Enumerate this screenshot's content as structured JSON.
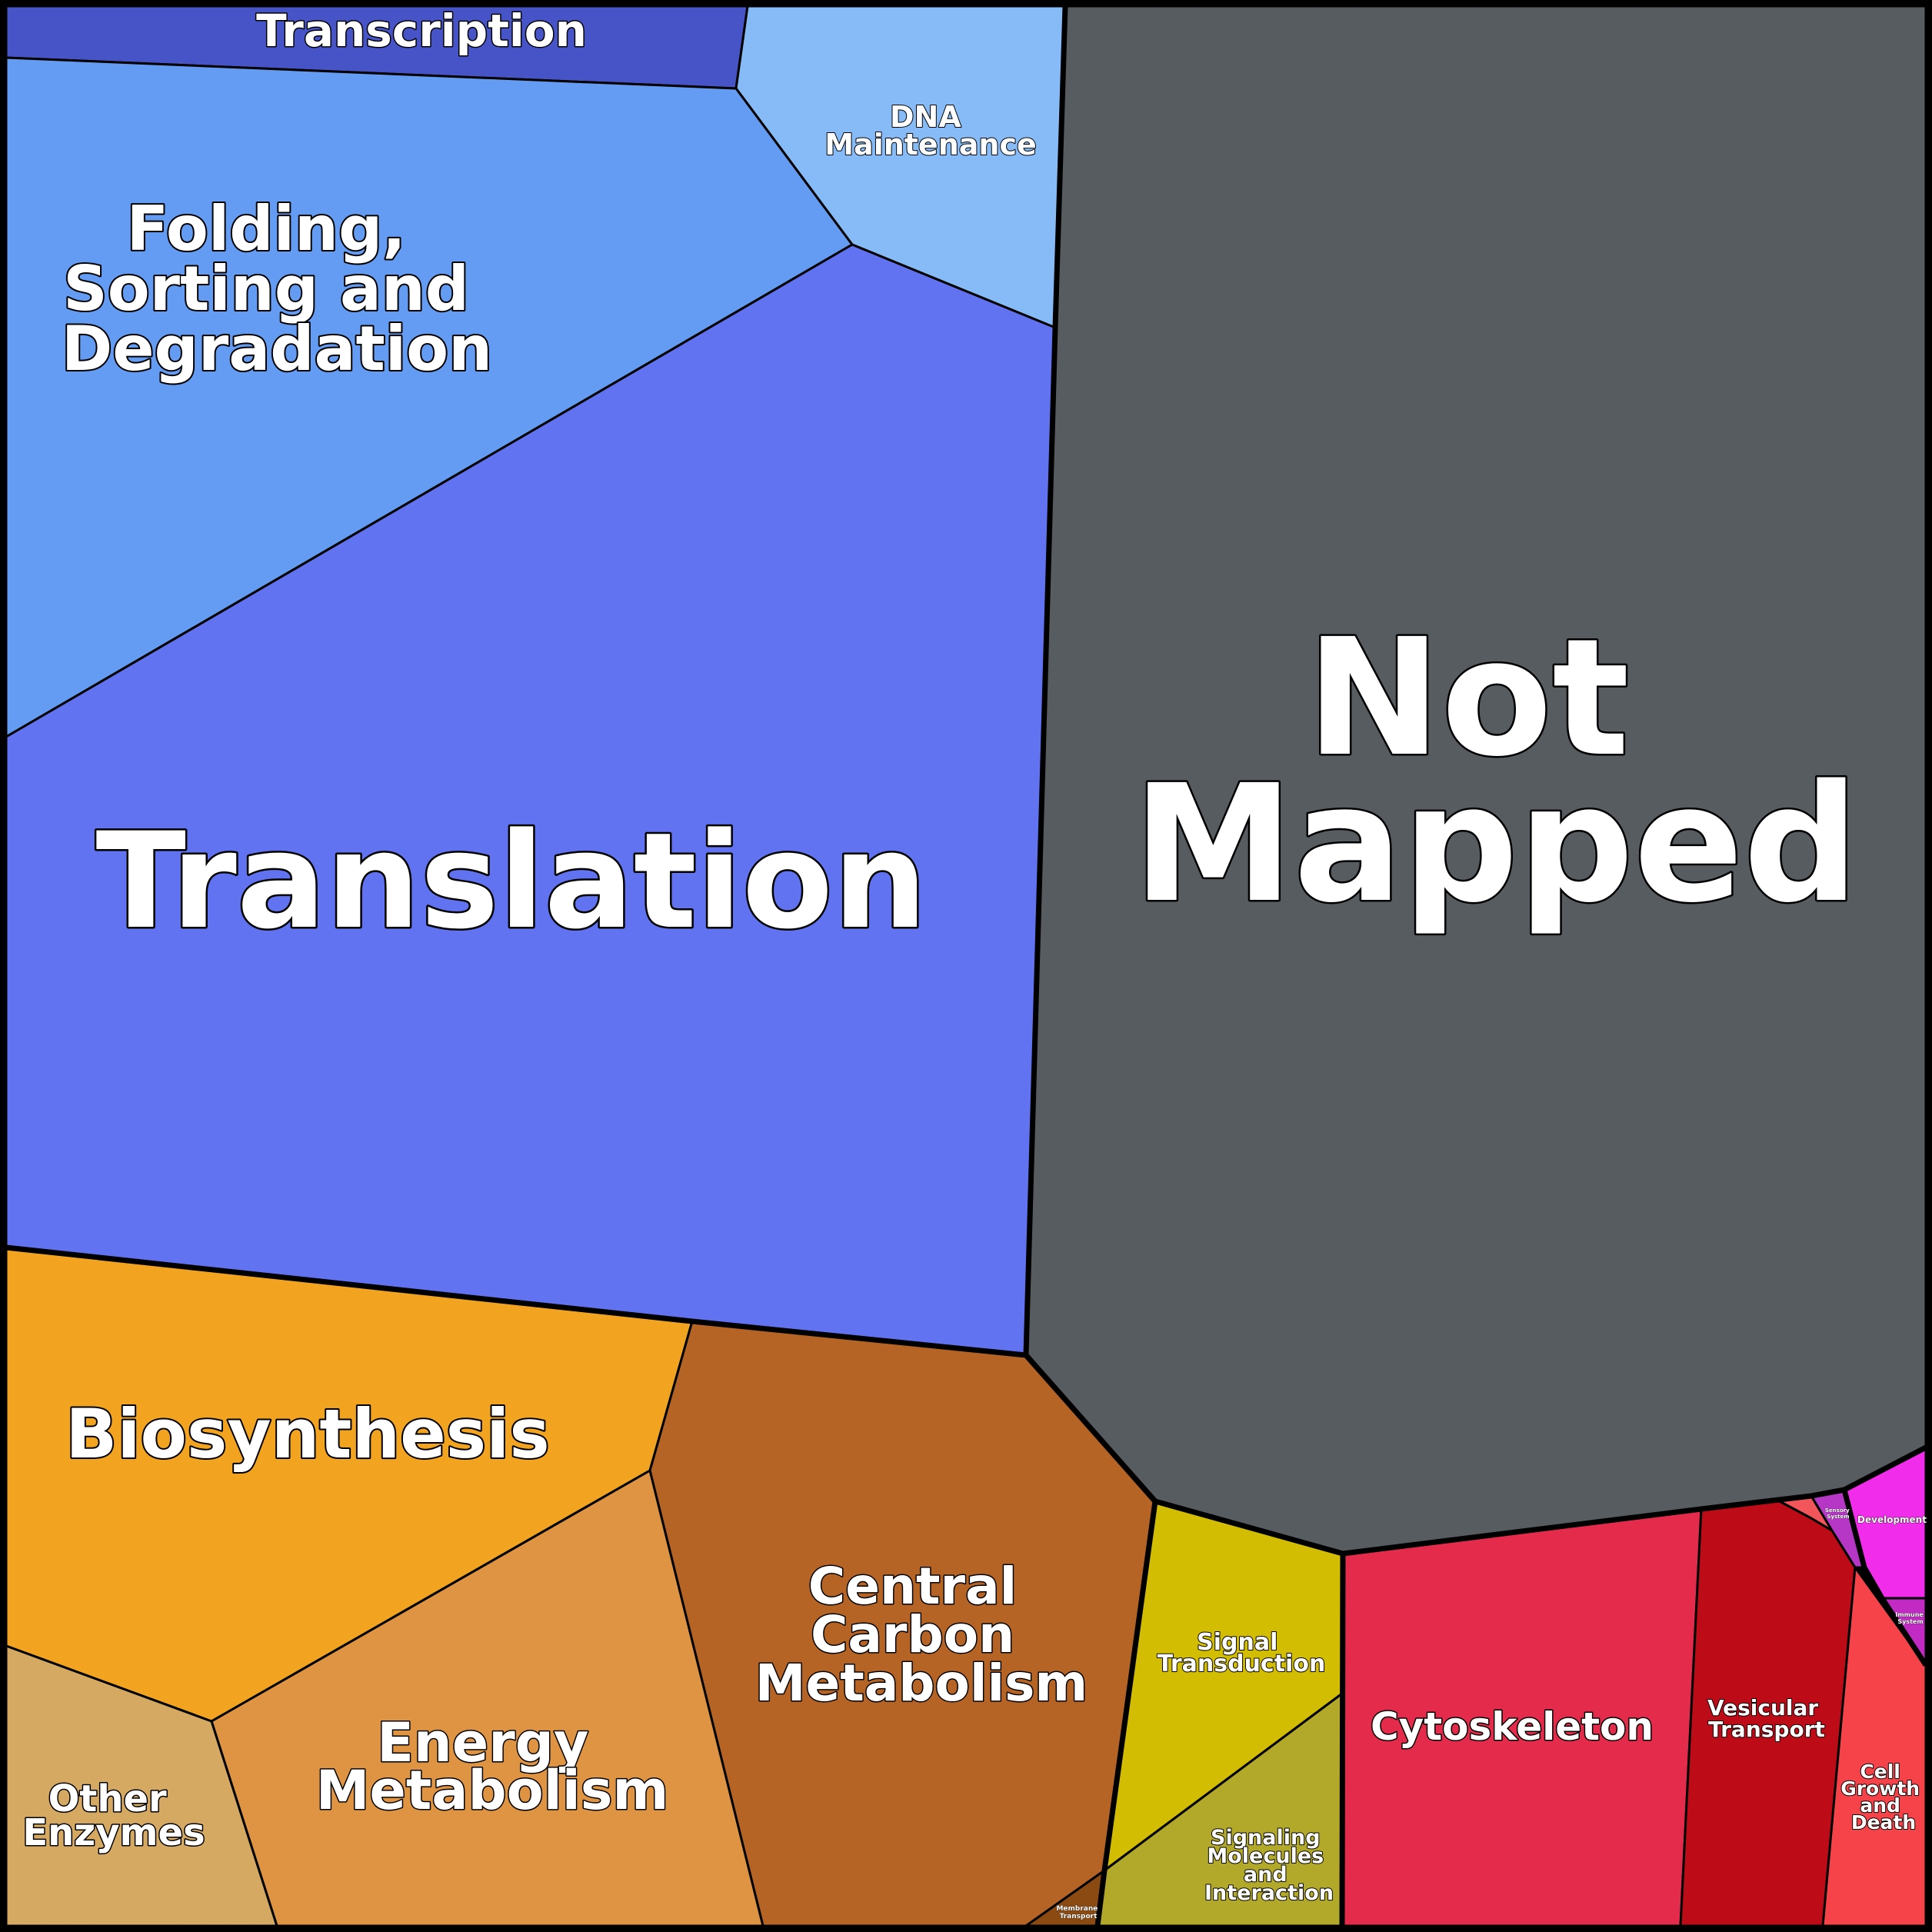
{
  "diagram_type": "voronoi-treemap",
  "cells": [
    {
      "id": "transcription",
      "label": "Transcription",
      "color": "#4654C8"
    },
    {
      "id": "dna-maintenance",
      "label": "DNA Maintenance",
      "color": "#86BBF8"
    },
    {
      "id": "folding",
      "label": "Folding, Sorting and Degradation",
      "color": "#659CF3"
    },
    {
      "id": "translation",
      "label": "Translation",
      "color": "#6173F1"
    },
    {
      "id": "not-mapped",
      "label": "Not Mapped",
      "color": "#575C61"
    },
    {
      "id": "biosynthesis",
      "label": "Biosynthesis",
      "color": "#F2A421"
    },
    {
      "id": "central-carbon",
      "label": "Central Carbon Metabolism",
      "color": "#B66426"
    },
    {
      "id": "energy",
      "label": "Energy Metabolism",
      "color": "#DE9442"
    },
    {
      "id": "other-enzymes",
      "label": "Other Enzymes",
      "color": "#D6A962"
    },
    {
      "id": "membrane-transport",
      "label": "Membrane Transport",
      "color": "#8A4A12"
    },
    {
      "id": "signal-transduction",
      "label": "Signal Transduction",
      "color": "#D3BD02"
    },
    {
      "id": "signaling-molecules",
      "label": "Signaling Molecules and Interaction",
      "color": "#B2A82A"
    },
    {
      "id": "cytoskeleton",
      "label": "Cytoskeleton",
      "color": "#E52B4B"
    },
    {
      "id": "vesicular",
      "label": "Vesicular Transport",
      "color": "#BE0B18"
    },
    {
      "id": "cell-growth",
      "label": "Cell Growth and Death",
      "color": "#F6434A"
    },
    {
      "id": "sensory",
      "label": "Sensory System",
      "color": "#B636C6"
    },
    {
      "id": "development",
      "label": "Development",
      "color": "#F12CEA"
    },
    {
      "id": "immune",
      "label": "Immune System",
      "color": "#C22AC4"
    },
    {
      "id": "small-red",
      "label": "",
      "color": "#F2555A"
    }
  ]
}
